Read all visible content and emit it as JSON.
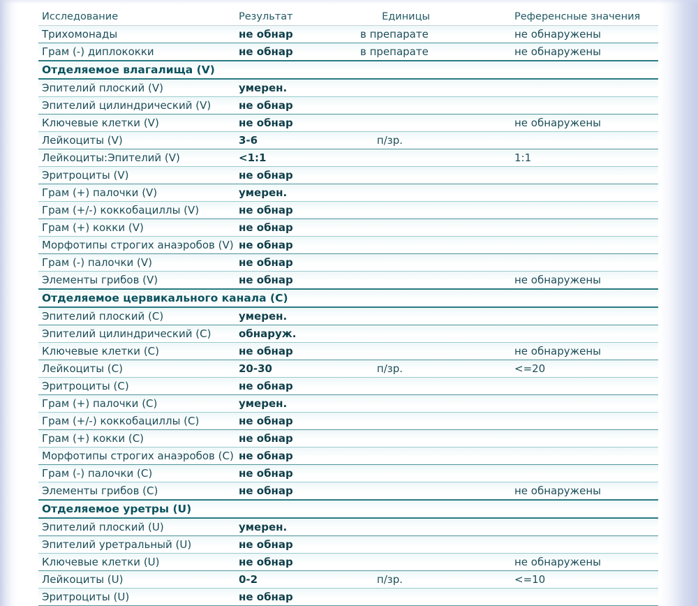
{
  "colors": {
    "accent_teal_line": "#2a7a82",
    "light_teal_line": "#9ccbcf",
    "label_text": "#1c4e59",
    "result_text": "#0f3f4a",
    "section_text": "#0a535e",
    "frame_left": "#c9d0e9",
    "frame_right": "#c6cde8",
    "page_background": "#ffffff"
  },
  "table": {
    "headers": {
      "test": "Исследование",
      "result": "Результат",
      "units": "Единицы",
      "reference": "Референсные значения"
    },
    "rows": [
      {
        "type": "test",
        "name": "Трихомонады",
        "result": "не обнар",
        "units": "в препарате",
        "ref": "не обнаружены"
      },
      {
        "type": "test",
        "name": "Грам (-) диплококки",
        "result": "не обнар",
        "units": "в препарате",
        "ref": "не обнаружены"
      },
      {
        "type": "section",
        "name": "Отделяемое влагалища (V)"
      },
      {
        "type": "test",
        "name": "Эпителий плоский (V)",
        "result": "умерен.",
        "units": "",
        "ref": ""
      },
      {
        "type": "test",
        "name": "Эпителий цилиндрический (V)",
        "result": "не обнар",
        "units": "",
        "ref": ""
      },
      {
        "type": "test",
        "name": "Ключевые клетки (V)",
        "result": "не обнар",
        "units": "",
        "ref": "не обнаружены"
      },
      {
        "type": "test",
        "name": "Лейкоциты (V)",
        "result": "3-6",
        "units": "п/зр.",
        "ref": ""
      },
      {
        "type": "test",
        "name": "Лейкоциты:Эпителий (V)",
        "result": "<1:1",
        "units": "",
        "ref": "1:1"
      },
      {
        "type": "test",
        "name": "Эритроциты (V)",
        "result": "не обнар",
        "units": "",
        "ref": ""
      },
      {
        "type": "test",
        "name": "Грам (+) палочки (V)",
        "result": "умерен.",
        "units": "",
        "ref": ""
      },
      {
        "type": "test",
        "name": "Грам (+/-) коккобациллы (V)",
        "result": "не обнар",
        "units": "",
        "ref": ""
      },
      {
        "type": "test",
        "name": "Грам (+) кокки (V)",
        "result": "не обнар",
        "units": "",
        "ref": ""
      },
      {
        "type": "test",
        "name": "Морфотипы строгих анаэробов (V)",
        "result": "не обнар",
        "units": "",
        "ref": ""
      },
      {
        "type": "test",
        "name": "Грам (-) палочки (V)",
        "result": "не обнар",
        "units": "",
        "ref": ""
      },
      {
        "type": "test",
        "name": "Элементы грибов (V)",
        "result": "не обнар",
        "units": "",
        "ref": "не обнаружены"
      },
      {
        "type": "section",
        "name": "Отделяемое цервикального канала (C)"
      },
      {
        "type": "test",
        "name": "Эпителий плоский (С)",
        "result": "умерен.",
        "units": "",
        "ref": ""
      },
      {
        "type": "test",
        "name": "Эпителий цилиндрический (С)",
        "result": "обнаруж.",
        "units": "",
        "ref": ""
      },
      {
        "type": "test",
        "name": "Ключевые клетки (С)",
        "result": "не обнар",
        "units": "",
        "ref": "не обнаружены"
      },
      {
        "type": "test",
        "name": "Лейкоциты (С)",
        "result": "20-30",
        "units": "п/зр.",
        "ref": "<=20"
      },
      {
        "type": "test",
        "name": "Эритроциты (С)",
        "result": "не обнар",
        "units": "",
        "ref": ""
      },
      {
        "type": "test",
        "name": "Грам (+) палочки (С)",
        "result": "умерен.",
        "units": "",
        "ref": ""
      },
      {
        "type": "test",
        "name": "Грам (+/-) коккобациллы (С)",
        "result": "не обнар",
        "units": "",
        "ref": ""
      },
      {
        "type": "test",
        "name": "Грам (+) кокки (С)",
        "result": "не обнар",
        "units": "",
        "ref": ""
      },
      {
        "type": "test",
        "name": "Морфотипы строгих анаэробов (С)",
        "result": "не обнар",
        "units": "",
        "ref": ""
      },
      {
        "type": "test",
        "name": "Грам (-) палочки (С)",
        "result": "не обнар",
        "units": "",
        "ref": ""
      },
      {
        "type": "test",
        "name": "Элементы грибов (С)",
        "result": "не обнар",
        "units": "",
        "ref": "не обнаружены"
      },
      {
        "type": "section",
        "name": "Отделяемое уретры (U)"
      },
      {
        "type": "test",
        "name": "Эпителий плоский (U)",
        "result": "умерен.",
        "units": "",
        "ref": ""
      },
      {
        "type": "test",
        "name": "Эпителий уретральный (U)",
        "result": "не обнар",
        "units": "",
        "ref": ""
      },
      {
        "type": "test",
        "name": "Ключевые клетки (U)",
        "result": "не обнар",
        "units": "",
        "ref": "не обнаружены"
      },
      {
        "type": "test",
        "name": "Лейкоциты (U)",
        "result": "0-2",
        "units": "п/зр.",
        "ref": "<=10"
      },
      {
        "type": "test",
        "name": "Эритроциты (U)",
        "result": "не обнар",
        "units": "",
        "ref": ""
      }
    ]
  }
}
